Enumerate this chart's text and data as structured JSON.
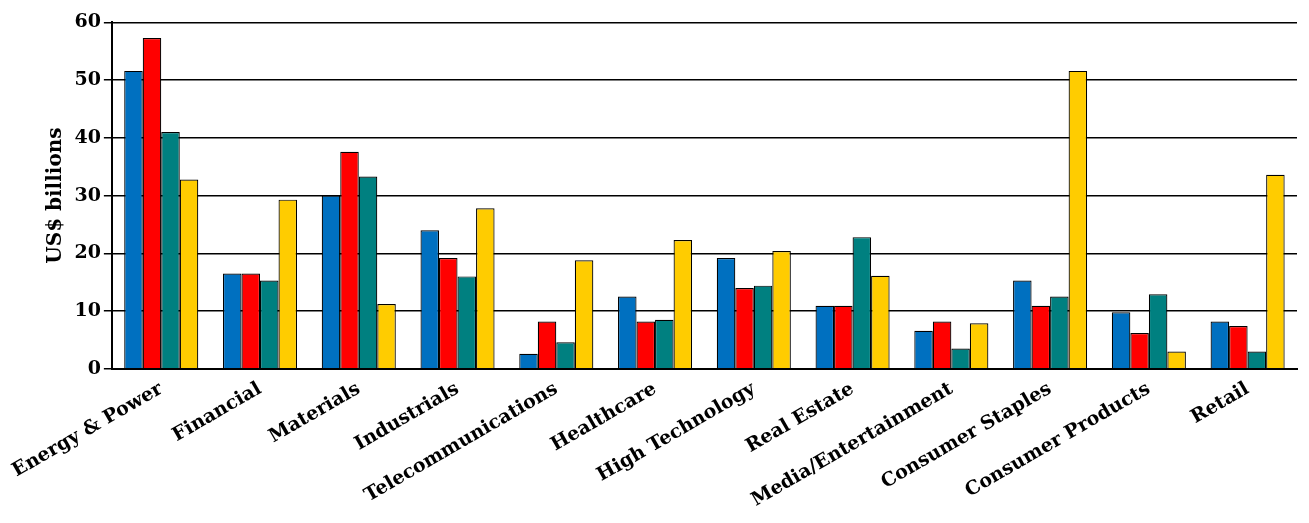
{
  "chart_data": {
    "type": "bar",
    "ylabel": "US$ billions",
    "categories": [
      "Energy & Power",
      "Financial",
      "Materials",
      "Industrials",
      "Telecommunications",
      "Healthcare",
      "High Technology",
      "Real Estate",
      "Media/Entertainment",
      "Consumer Staples",
      "Consumer Products",
      "Retail"
    ],
    "series": [
      {
        "color": "#0070c0",
        "values": [
          51.6,
          16.5,
          30,
          24,
          2.6,
          12.5,
          19.2,
          10.9,
          6.6,
          15.3,
          9.8,
          8.2
        ]
      },
      {
        "color": "#ff0000",
        "values": [
          57.3,
          16.5,
          37.6,
          19.2,
          8.2,
          8.2,
          14,
          10.9,
          8.2,
          10.9,
          6.2,
          7.4
        ]
      },
      {
        "color": "#008080",
        "values": [
          41,
          15.3,
          33.3,
          16,
          4.6,
          8.5,
          14.4,
          22.8,
          3.5,
          12.5,
          12.9,
          3
        ]
      },
      {
        "color": "#ffcc00",
        "values": [
          32.8,
          29.3,
          11.2,
          27.8,
          18.8,
          22.3,
          20.4,
          16.1,
          7.9,
          51.6,
          3,
          33.6
        ]
      }
    ],
    "ylim": [
      0,
      60
    ],
    "yticks": [
      0,
      10,
      20,
      30,
      40,
      50,
      60
    ],
    "grid": "y",
    "legend": false
  }
}
